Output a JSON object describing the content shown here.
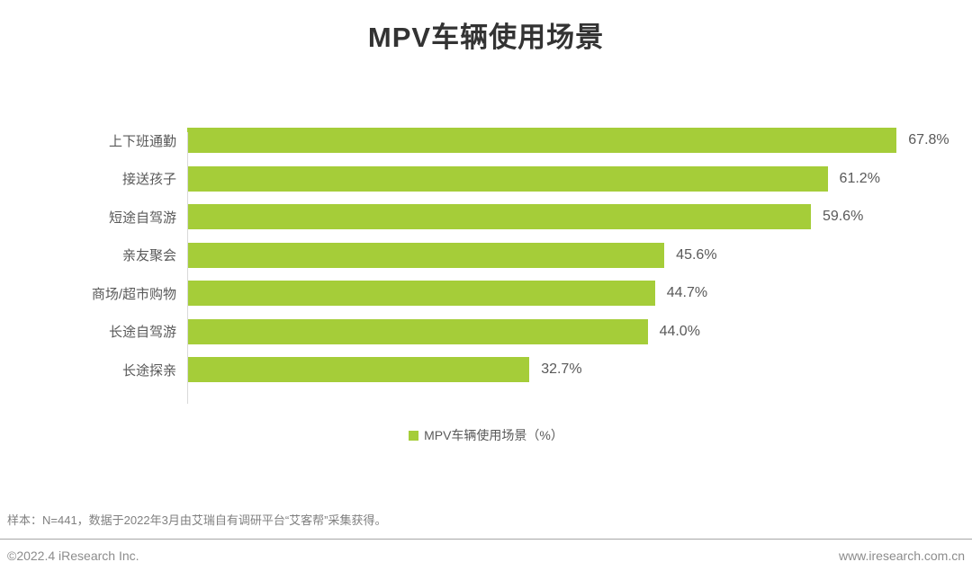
{
  "chart_data": {
    "type": "bar",
    "orientation": "horizontal",
    "title": "MPV车辆使用场景",
    "categories": [
      "上下班通勤",
      "接送孩子",
      "短途自驾游",
      "亲友聚会",
      "商场/超市购物",
      "长途自驾游",
      "长途探亲"
    ],
    "values": [
      67.8,
      61.2,
      59.6,
      45.6,
      44.7,
      44.0,
      32.7
    ],
    "value_suffix": "%",
    "xlim": [
      0,
      75
    ],
    "grid": false,
    "legend": {
      "label": "MPV车辆使用场景（%）",
      "position": "bottom",
      "swatch_color": "#a5cd39"
    },
    "bar_color": "#a5cd39"
  },
  "footnote": "样本：N=441，数据于2022年3月由艾瑞自有调研平台“艾客帮”采集获得。",
  "footer": {
    "copyright": "©2022.4 iResearch Inc.",
    "website": "www.iresearch.com.cn"
  },
  "colors": {
    "bar": "#a5cd39",
    "title_text": "#333333",
    "label_text": "#595959",
    "note_text": "#808080",
    "footer_text": "#8c8c8c",
    "axis_line": "#d9d9d9",
    "divider": "#a6a6a6",
    "background": "#ffffff"
  }
}
